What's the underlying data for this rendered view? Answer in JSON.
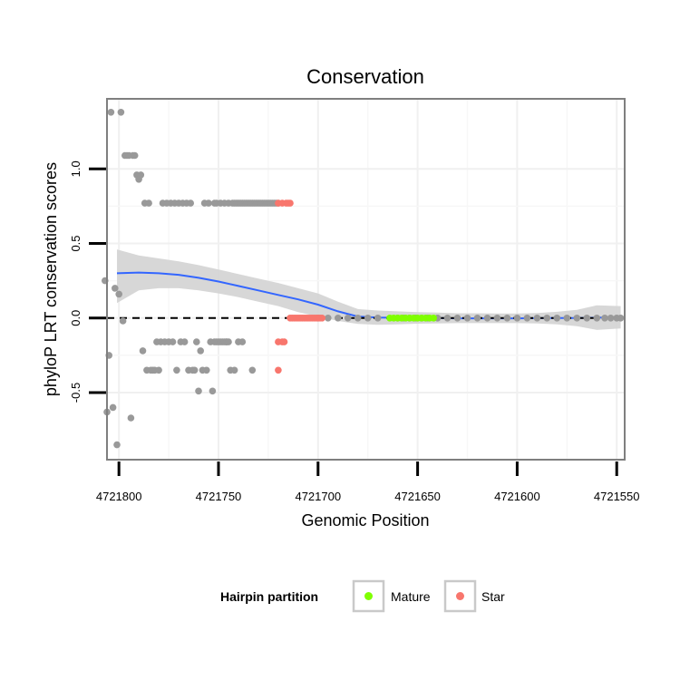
{
  "chart_data": {
    "type": "scatter",
    "title": "Conservation",
    "xlabel": "Genomic Position",
    "ylabel": "phyloP LRT conservation scores",
    "x_reversed": true,
    "xlim": [
      4721806,
      4721546
    ],
    "ylim": [
      -0.95,
      1.47
    ],
    "x_ticks": [
      4721800,
      4721750,
      4721700,
      4721650,
      4721600,
      4721550
    ],
    "x_tick_labels": [
      "4721800",
      "4721750",
      "4721700",
      "4721650",
      "4721600",
      "4721550"
    ],
    "y_ticks": [
      -0.5,
      0.0,
      0.5,
      1.0
    ],
    "y_tick_labels": [
      "-0.5",
      "0.0",
      "0.5",
      "1.0"
    ],
    "grid": true,
    "reference_line": {
      "y": 0,
      "style": "dashed"
    },
    "colors": {
      "other": "#999999",
      "Mature": "#7fff00",
      "Star": "#f8766d",
      "smooth": "#3366ff",
      "band": "#d3d3d3"
    },
    "legend": {
      "title": "Hairpin partition",
      "position": "bottom",
      "entries": [
        {
          "label": "Mature",
          "color": "#7fff00"
        },
        {
          "label": "Star",
          "color": "#f8766d"
        }
      ]
    },
    "series": [
      {
        "name": "Other",
        "points": [
          [
            4721807,
            0.25
          ],
          [
            4721806,
            -0.63
          ],
          [
            4721805,
            -0.25
          ],
          [
            4721804,
            1.38
          ],
          [
            4721803,
            -0.6
          ],
          [
            4721802,
            0.2
          ],
          [
            4721801,
            -0.85
          ],
          [
            4721800,
            0.16
          ],
          [
            4721799,
            1.38
          ],
          [
            4721798,
            -0.02
          ],
          [
            4721797,
            1.09
          ],
          [
            4721796,
            1.09
          ],
          [
            4721795,
            1.09
          ],
          [
            4721794,
            -0.67
          ],
          [
            4721793,
            1.09
          ],
          [
            4721792,
            1.09
          ],
          [
            4721791,
            0.96
          ],
          [
            4721790,
            0.93
          ],
          [
            4721789,
            0.96
          ],
          [
            4721788,
            -0.22
          ],
          [
            4721787,
            0.77
          ],
          [
            4721786,
            -0.35
          ],
          [
            4721785,
            0.77
          ],
          [
            4721784,
            -0.35
          ],
          [
            4721783,
            -0.35
          ],
          [
            4721782,
            -0.35
          ],
          [
            4721781,
            -0.16
          ],
          [
            4721780,
            -0.35
          ],
          [
            4721779,
            -0.16
          ],
          [
            4721778,
            0.77
          ],
          [
            4721777,
            -0.16
          ],
          [
            4721776,
            0.77
          ],
          [
            4721775,
            -0.16
          ],
          [
            4721774,
            0.77
          ],
          [
            4721773,
            -0.16
          ],
          [
            4721772,
            0.77
          ],
          [
            4721771,
            -0.35
          ],
          [
            4721770,
            0.77
          ],
          [
            4721769,
            -0.16
          ],
          [
            4721768,
            0.77
          ],
          [
            4721767,
            -0.16
          ],
          [
            4721766,
            0.77
          ],
          [
            4721765,
            -0.35
          ],
          [
            4721764,
            0.77
          ],
          [
            4721763,
            -0.35
          ],
          [
            4721762,
            -0.35
          ],
          [
            4721761,
            -0.16
          ],
          [
            4721760,
            -0.49
          ],
          [
            4721759,
            -0.22
          ],
          [
            4721758,
            -0.35
          ],
          [
            4721757,
            0.77
          ],
          [
            4721756,
            -0.35
          ],
          [
            4721755,
            0.77
          ],
          [
            4721754,
            -0.16
          ],
          [
            4721753,
            -0.49
          ],
          [
            4721752,
            0.77
          ],
          [
            4721751,
            0.77
          ],
          [
            4721750,
            -0.16
          ],
          [
            4721749,
            0.77
          ],
          [
            4721748,
            -0.16
          ],
          [
            4721747,
            0.77
          ],
          [
            4721746,
            -0.16
          ],
          [
            4721745,
            0.77
          ],
          [
            4721744,
            -0.35
          ],
          [
            4721743,
            0.77
          ],
          [
            4721742,
            0.77
          ],
          [
            4721741,
            0.77
          ],
          [
            4721740,
            0.77
          ],
          [
            4721739,
            0.77
          ],
          [
            4721738,
            0.77
          ],
          [
            4721737,
            0.77
          ],
          [
            4721736,
            0.77
          ],
          [
            4721735,
            0.77
          ],
          [
            4721734,
            0.77
          ],
          [
            4721733,
            0.77
          ],
          [
            4721732,
            0.77
          ],
          [
            4721731,
            0.77
          ],
          [
            4721730,
            0.77
          ],
          [
            4721729,
            0.77
          ],
          [
            4721728,
            0.77
          ],
          [
            4721727,
            0.77
          ],
          [
            4721726,
            0.77
          ],
          [
            4721725,
            0.77
          ],
          [
            4721724,
            0.77
          ],
          [
            4721723,
            0.77
          ],
          [
            4721722,
            0.77
          ],
          [
            4721721,
            0.77
          ],
          [
            4721720,
            0.77
          ],
          [
            4721752,
            -0.16
          ],
          [
            4721751,
            -0.16
          ],
          [
            4721749,
            -0.16
          ],
          [
            4721747,
            -0.16
          ],
          [
            4721746,
            -0.16
          ],
          [
            4721745,
            -0.16
          ],
          [
            4721742,
            -0.35
          ],
          [
            4721740,
            -0.16
          ],
          [
            4721738,
            -0.16
          ],
          [
            4721733,
            -0.35
          ],
          [
            4721700,
            0.0
          ],
          [
            4721695,
            0.0
          ],
          [
            4721690,
            0.0
          ],
          [
            4721685,
            0.0
          ],
          [
            4721680,
            0.0
          ],
          [
            4721675,
            0.0
          ],
          [
            4721670,
            0.0
          ],
          [
            4721660,
            0.0
          ],
          [
            4721657,
            0.0
          ],
          [
            4721654,
            0.0
          ],
          [
            4721651,
            0.0
          ],
          [
            4721648,
            0.0
          ],
          [
            4721645,
            0.0
          ],
          [
            4721640,
            0.0
          ],
          [
            4721635,
            0.0
          ],
          [
            4721630,
            0.0
          ],
          [
            4721625,
            0.0
          ],
          [
            4721620,
            0.0
          ],
          [
            4721615,
            0.0
          ],
          [
            4721610,
            0.0
          ],
          [
            4721605,
            0.0
          ],
          [
            4721600,
            0.0
          ],
          [
            4721595,
            0.0
          ],
          [
            4721590,
            0.0
          ],
          [
            4721585,
            0.0
          ],
          [
            4721580,
            0.0
          ],
          [
            4721575,
            0.0
          ],
          [
            4721570,
            0.0
          ],
          [
            4721565,
            0.0
          ],
          [
            4721560,
            0.0
          ],
          [
            4721556,
            0.0
          ],
          [
            4721553,
            0.0
          ],
          [
            4721550,
            0.0
          ],
          [
            4721548,
            0.0
          ]
        ]
      },
      {
        "name": "Star",
        "points": [
          [
            4721720,
            0.77
          ],
          [
            4721718,
            0.77
          ],
          [
            4721716,
            0.77
          ],
          [
            4721715,
            0.77
          ],
          [
            4721714,
            0.77
          ],
          [
            4721720,
            -0.16
          ],
          [
            4721718,
            -0.16
          ],
          [
            4721717,
            -0.16
          ],
          [
            4721720,
            -0.35
          ],
          [
            4721714,
            0.0
          ],
          [
            4721713,
            0.0
          ],
          [
            4721712,
            0.0
          ],
          [
            4721711,
            0.0
          ],
          [
            4721710,
            0.0
          ],
          [
            4721709,
            0.0
          ],
          [
            4721708,
            0.0
          ],
          [
            4721707,
            0.0
          ],
          [
            4721706,
            0.0
          ],
          [
            4721705,
            0.0
          ],
          [
            4721704,
            0.0
          ],
          [
            4721703,
            0.0
          ],
          [
            4721702,
            0.0
          ],
          [
            4721701,
            0.0
          ],
          [
            4721700,
            0.0
          ],
          [
            4721699,
            0.0
          ],
          [
            4721698,
            0.0
          ]
        ]
      },
      {
        "name": "Mature",
        "points": [
          [
            4721664,
            0.0
          ],
          [
            4721662,
            0.0
          ],
          [
            4721660,
            0.0
          ],
          [
            4721658,
            0.0
          ],
          [
            4721656,
            0.0
          ],
          [
            4721654,
            0.0
          ],
          [
            4721652,
            0.0
          ],
          [
            4721650,
            0.0
          ],
          [
            4721648,
            0.0
          ],
          [
            4721646,
            0.0
          ],
          [
            4721644,
            0.0
          ],
          [
            4721642,
            0.0
          ]
        ]
      }
    ],
    "smooth": [
      {
        "x": 4721801,
        "y": 0.3,
        "lo": 0.1,
        "hi": 0.46
      },
      {
        "x": 4721790,
        "y": 0.305,
        "lo": 0.185,
        "hi": 0.42
      },
      {
        "x": 4721780,
        "y": 0.3,
        "lo": 0.2,
        "hi": 0.4
      },
      {
        "x": 4721770,
        "y": 0.29,
        "lo": 0.2,
        "hi": 0.38
      },
      {
        "x": 4721760,
        "y": 0.27,
        "lo": 0.185,
        "hi": 0.355
      },
      {
        "x": 4721750,
        "y": 0.245,
        "lo": 0.165,
        "hi": 0.325
      },
      {
        "x": 4721740,
        "y": 0.215,
        "lo": 0.14,
        "hi": 0.295
      },
      {
        "x": 4721730,
        "y": 0.185,
        "lo": 0.11,
        "hi": 0.265
      },
      {
        "x": 4721720,
        "y": 0.155,
        "lo": 0.08,
        "hi": 0.235
      },
      {
        "x": 4721710,
        "y": 0.125,
        "lo": 0.04,
        "hi": 0.2
      },
      {
        "x": 4721700,
        "y": 0.09,
        "lo": 0.01,
        "hi": 0.165
      },
      {
        "x": 4721690,
        "y": 0.045,
        "lo": -0.02,
        "hi": 0.11
      },
      {
        "x": 4721680,
        "y": 0.01,
        "lo": -0.04,
        "hi": 0.06
      },
      {
        "x": 4721670,
        "y": 0.003,
        "lo": -0.045,
        "hi": 0.05
      },
      {
        "x": 4721660,
        "y": 0.002,
        "lo": -0.042,
        "hi": 0.045
      },
      {
        "x": 4721650,
        "y": 0.001,
        "lo": -0.038,
        "hi": 0.04
      },
      {
        "x": 4721640,
        "y": 0.0,
        "lo": -0.036,
        "hi": 0.036
      },
      {
        "x": 4721630,
        "y": -0.002,
        "lo": -0.034,
        "hi": 0.032
      },
      {
        "x": 4721620,
        "y": -0.002,
        "lo": -0.034,
        "hi": 0.032
      },
      {
        "x": 4721610,
        "y": -0.002,
        "lo": -0.034,
        "hi": 0.03
      },
      {
        "x": 4721600,
        "y": -0.002,
        "lo": -0.034,
        "hi": 0.03
      },
      {
        "x": 4721590,
        "y": -0.001,
        "lo": -0.036,
        "hi": 0.034
      },
      {
        "x": 4721580,
        "y": 0.0,
        "lo": -0.042,
        "hi": 0.042
      },
      {
        "x": 4721570,
        "y": 0.0,
        "lo": -0.055,
        "hi": 0.055
      },
      {
        "x": 4721560,
        "y": 0.002,
        "lo": -0.08,
        "hi": 0.085
      },
      {
        "x": 4721548,
        "y": 0.005,
        "lo": -0.07,
        "hi": 0.08
      }
    ]
  }
}
